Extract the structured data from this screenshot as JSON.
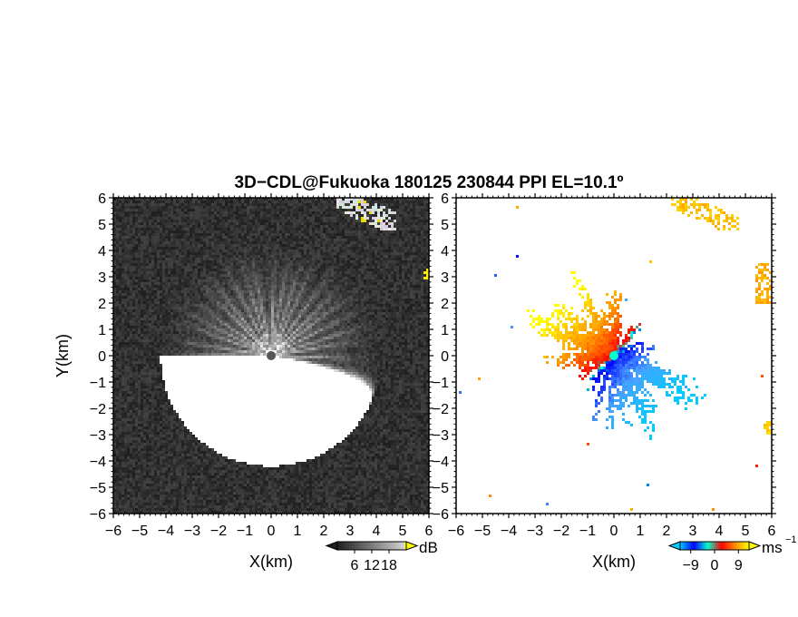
{
  "title": "3D−CDL@Fukuoka 180125 230844 PPI EL=10.1º",
  "colors": {
    "background": "#ffffff",
    "axis": "#000000",
    "reflectivity_dark": "#1e1e1e",
    "reflectivity_light": "#d8d8d8",
    "reflectivity_high": "#ffff00",
    "velocity_neg_far": "#00ccff",
    "velocity_neg_near": "#0000ff",
    "velocity_zero": "#00ffcc",
    "velocity_pos_near": "#ff0000",
    "velocity_pos_mid": "#ff8c00",
    "velocity_pos_far": "#ffff00"
  },
  "chart_data": [
    {
      "type": "heatmap",
      "name": "reflectivity",
      "xlabel": "X(km)",
      "ylabel": "Y(km)",
      "xlim": [
        -6,
        6
      ],
      "ylim": [
        -6,
        6
      ],
      "xticks": [
        "−6",
        "−5",
        "−4",
        "−3",
        "−2",
        "−1",
        "0",
        "1",
        "2",
        "3",
        "4",
        "5",
        "6"
      ],
      "yticks": [
        "−6",
        "−5",
        "−4",
        "−3",
        "−2",
        "−1",
        "0",
        "1",
        "2",
        "3",
        "4",
        "5",
        "6"
      ],
      "colorbar": {
        "unit": "dB",
        "ticks": [
          "6",
          "12",
          "18"
        ],
        "range": [
          0,
          24
        ]
      },
      "features": [
        {
          "kind": "radial-spokes",
          "center": [
            0,
            0
          ],
          "radius_km": 4.2
        },
        {
          "kind": "echo-band",
          "x_range": [
            2.5,
            4.8
          ],
          "y_range": [
            4.8,
            6.0
          ],
          "level": "moderate"
        },
        {
          "kind": "echo-band",
          "x_range": [
            5.8,
            6.0
          ],
          "y_range": [
            2.8,
            3.4
          ],
          "level": "high"
        }
      ]
    },
    {
      "type": "heatmap",
      "name": "doppler-velocity",
      "xlabel": "X(km)",
      "xlim": [
        -6,
        6
      ],
      "ylim": [
        -6,
        6
      ],
      "xticks": [
        "−6",
        "−5",
        "−4",
        "−3",
        "−2",
        "−1",
        "0",
        "1",
        "2",
        "3",
        "4",
        "5",
        "6"
      ],
      "yticks": [
        "−6",
        "−5",
        "−4",
        "−3",
        "−2",
        "−1",
        "0",
        "1",
        "2",
        "3",
        "4",
        "5",
        "6"
      ],
      "colorbar": {
        "unit": "ms",
        "unit_exponent": "−1",
        "ticks": [
          "−9",
          "0",
          "9"
        ],
        "range": [
          -13,
          13
        ]
      },
      "features": [
        {
          "kind": "dipole",
          "center": [
            0,
            0
          ],
          "negative_side": "upper-left",
          "positive_side": "lower-right",
          "radius_km": 3.2
        },
        {
          "kind": "echo-band",
          "x_range": [
            2.2,
            4.8
          ],
          "y_range": [
            4.8,
            6.0
          ],
          "velocity": 9
        },
        {
          "kind": "echo-band",
          "x_range": [
            5.4,
            6.0
          ],
          "y_range": [
            2.0,
            3.5
          ],
          "velocity": 8
        },
        {
          "kind": "echo-band",
          "x_range": [
            5.7,
            6.0
          ],
          "y_range": [
            -3.0,
            -2.5
          ],
          "velocity": 10
        }
      ]
    }
  ]
}
